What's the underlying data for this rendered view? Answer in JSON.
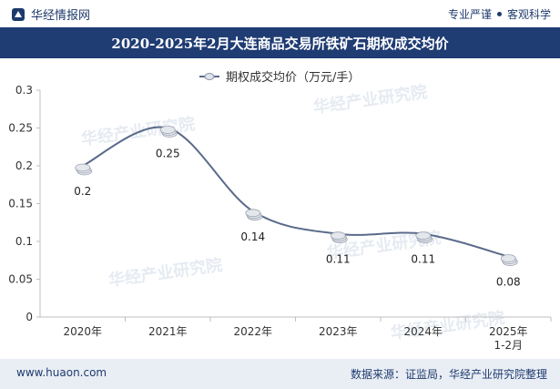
{
  "brand": {
    "name": "华经情报网",
    "logo_icon": "logo-icon"
  },
  "tagline": {
    "left": "专业严谨",
    "right": "客观科学"
  },
  "title": "2020-2025年2月大连商品交易所铁矿石期权成交均价",
  "footer": {
    "website": "www.huaon.com",
    "source": "数据来源：证监局，华经产业研究院整理"
  },
  "watermark": {
    "text": "华经产业研究院",
    "url": "www.huaon.com"
  },
  "colors": {
    "line": "#5a6a8a",
    "header": "#1f3c73",
    "footer_bg": "#e9eef5",
    "axis_text": "#333333"
  },
  "chart_data": {
    "type": "line",
    "title": "2020-2025年2月大连商品交易所铁矿石期权成交均价",
    "categories": [
      "2020年",
      "2021年",
      "2022年",
      "2023年",
      "2024年",
      "2025年\n1-2月"
    ],
    "series": [
      {
        "name": "期权成交均价（万元/手）",
        "values": [
          0.2,
          0.25,
          0.14,
          0.11,
          0.11,
          0.08
        ]
      }
    ],
    "data_labels": [
      "0.2",
      "0.25",
      "0.14",
      "0.11",
      "0.11",
      "0.08"
    ],
    "ylim": [
      0,
      0.3
    ],
    "yticks": [
      "0",
      "0.05",
      "0.1",
      "0.15",
      "0.2",
      "0.25",
      "0.3"
    ],
    "legend": "top-center",
    "grid": false,
    "smooth": true
  }
}
